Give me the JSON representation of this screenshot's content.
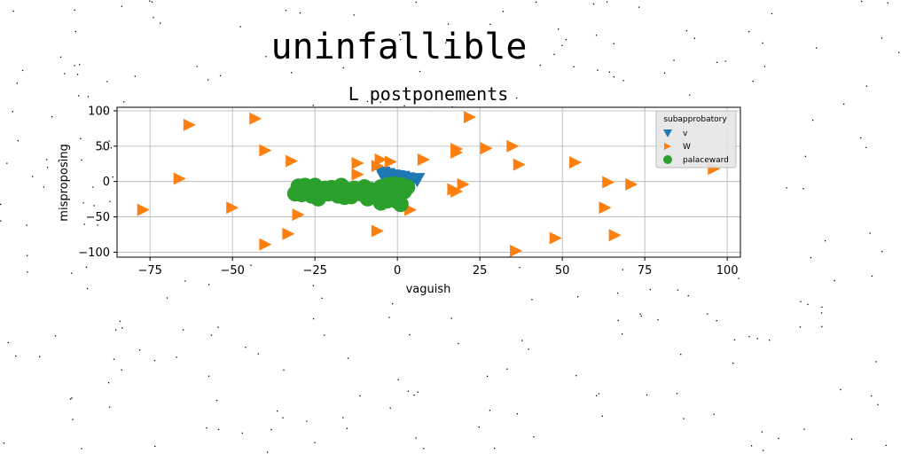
{
  "chart_data": {
    "type": "scatter",
    "suptitle": "uninfallible",
    "title": "L postponements",
    "xlabel": "vaguish",
    "ylabel": "misproposing",
    "xlim": [
      -85,
      104
    ],
    "ylim": [
      -107,
      105
    ],
    "xticks": [
      -75,
      -50,
      -25,
      0,
      25,
      50,
      75,
      100
    ],
    "yticks": [
      -100,
      -50,
      0,
      50,
      100
    ],
    "xtick_labels": [
      "−75",
      "−50",
      "−25",
      "0",
      "25",
      "50",
      "75",
      "100"
    ],
    "ytick_labels": [
      "−100",
      "−50",
      "0",
      "50",
      "100"
    ],
    "grid": true,
    "legend": {
      "title": "subapprobatory",
      "placement": "top-right"
    },
    "series": [
      {
        "name": "v",
        "marker": "triangle-down",
        "color": "#1f77b4",
        "points": [
          [
            -4.5,
            12
          ],
          [
            -3,
            10
          ],
          [
            -1.5,
            8
          ],
          [
            0,
            7
          ],
          [
            1.5,
            6
          ],
          [
            3,
            4
          ],
          [
            4.5,
            2
          ],
          [
            6,
            3
          ],
          [
            -2,
            4
          ],
          [
            0,
            2
          ],
          [
            2,
            1
          ],
          [
            -4,
            6
          ]
        ]
      },
      {
        "name": "W",
        "marker": "triangle-right",
        "color": "#ff7f0e",
        "points": [
          [
            -63,
            80
          ],
          [
            -43,
            89
          ],
          [
            22,
            91
          ],
          [
            -40,
            44
          ],
          [
            18,
            46
          ],
          [
            27,
            47
          ],
          [
            35,
            50
          ],
          [
            -32,
            29
          ],
          [
            -12,
            26
          ],
          [
            -5,
            31
          ],
          [
            -2,
            28
          ],
          [
            -6,
            22
          ],
          [
            8,
            31
          ],
          [
            18,
            41
          ],
          [
            37,
            24
          ],
          [
            54,
            27
          ],
          [
            -66,
            4
          ],
          [
            -12,
            10
          ],
          [
            20,
            -4
          ],
          [
            18,
            -14
          ],
          [
            17,
            -11
          ],
          [
            64,
            -1
          ],
          [
            71,
            -4
          ],
          [
            96,
            18
          ],
          [
            -77,
            -40
          ],
          [
            -50,
            -37
          ],
          [
            -30,
            -47
          ],
          [
            4,
            -40
          ],
          [
            63,
            -37
          ],
          [
            -6,
            -70
          ],
          [
            -33,
            -74
          ],
          [
            -40,
            -89
          ],
          [
            48,
            -80
          ],
          [
            66,
            -76
          ],
          [
            36,
            -98
          ]
        ]
      },
      {
        "name": "palaceward",
        "marker": "circle",
        "color": "#2ca02c",
        "points": [
          [
            -30,
            -7
          ],
          [
            -28,
            -6
          ],
          [
            -25,
            -6
          ],
          [
            -22,
            -10
          ],
          [
            -20,
            -9
          ],
          [
            -17,
            -6
          ],
          [
            -13,
            -10
          ],
          [
            -10,
            -8
          ],
          [
            -8,
            -12
          ],
          [
            -5,
            -8
          ],
          [
            -3,
            -5
          ],
          [
            -1,
            -4
          ],
          [
            1,
            -5
          ],
          [
            3,
            -8
          ],
          [
            2,
            -14
          ],
          [
            -31,
            -17
          ],
          [
            -29,
            -18
          ],
          [
            -26,
            -20
          ],
          [
            -24,
            -24
          ],
          [
            -21,
            -17
          ],
          [
            -19,
            -14
          ],
          [
            -16,
            -22
          ],
          [
            -14,
            -21
          ],
          [
            -11,
            -17
          ],
          [
            -9,
            -24
          ],
          [
            -7,
            -19
          ],
          [
            -5,
            -30
          ],
          [
            -3,
            -27
          ],
          [
            0,
            -28
          ],
          [
            1,
            -32
          ],
          [
            -1,
            -23
          ],
          [
            -4,
            -18
          ],
          [
            -27,
            -12
          ],
          [
            -23,
            -13
          ],
          [
            -18,
            -20
          ],
          [
            -12,
            -12
          ],
          [
            -6,
            -13
          ],
          [
            -2,
            -20
          ],
          [
            0,
            -15
          ],
          [
            -15,
            -12
          ]
        ]
      }
    ]
  }
}
